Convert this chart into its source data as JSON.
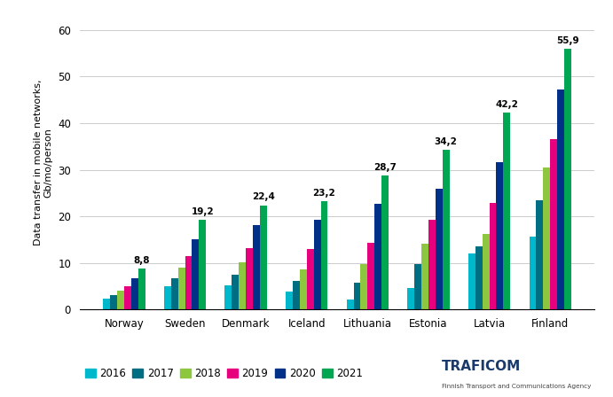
{
  "categories": [
    "Norway",
    "Sweden",
    "Denmark",
    "Iceland",
    "Lithuania",
    "Estonia",
    "Latvia",
    "Finland"
  ],
  "years": [
    "2016",
    "2017",
    "2018",
    "2019",
    "2020",
    "2021"
  ],
  "colors": [
    "#00B8CC",
    "#006E82",
    "#8DC63F",
    "#E6007E",
    "#003087",
    "#00A651"
  ],
  "values": {
    "2016": [
      2.3,
      5.1,
      5.2,
      3.9,
      2.1,
      4.7,
      12.1,
      15.7
    ],
    "2017": [
      3.1,
      6.8,
      7.5,
      6.1,
      5.7,
      9.8,
      13.6,
      23.4
    ],
    "2018": [
      4.0,
      9.0,
      10.2,
      8.7,
      9.7,
      14.1,
      16.3,
      30.5
    ],
    "2019": [
      5.0,
      11.4,
      13.2,
      13.1,
      14.3,
      19.3,
      22.8,
      36.5
    ],
    "2020": [
      6.8,
      15.1,
      18.1,
      19.2,
      22.7,
      26.0,
      31.7,
      47.2
    ],
    "2021": [
      8.8,
      19.2,
      22.4,
      23.2,
      28.7,
      34.2,
      42.2,
      55.9
    ]
  },
  "top_labels": {
    "Norway": 8.8,
    "Sweden": 19.2,
    "Denmark": 22.4,
    "Iceland": 23.2,
    "Lithuania": 28.7,
    "Estonia": 34.2,
    "Latvia": 42.2,
    "Finland": 55.9
  },
  "ylabel": "Data transfer in mobile networks,\nGb/mo/person",
  "ylim": [
    0,
    63
  ],
  "yticks": [
    0,
    10,
    20,
    30,
    40,
    50,
    60
  ],
  "background_color": "#ffffff",
  "grid_color": "#cccccc",
  "traficom_color": "#1a3a6b",
  "traficom_sub_color": "#444444",
  "legend_years": [
    "2016",
    "2017",
    "2018",
    "2019",
    "2020",
    "2021"
  ]
}
